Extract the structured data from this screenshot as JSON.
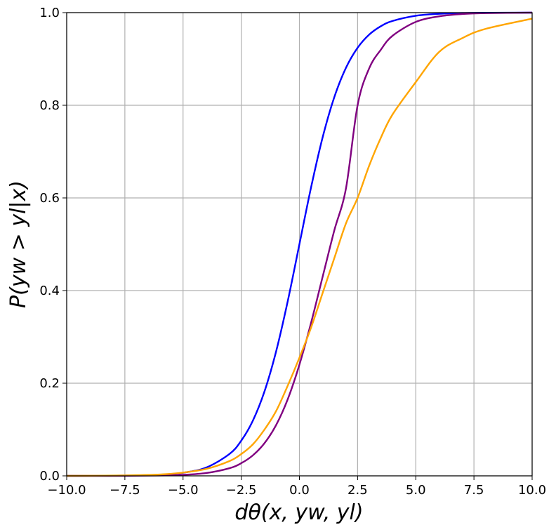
{
  "chart_data": {
    "type": "line",
    "title": "",
    "xlabel": "dθ(x, yw, yl)",
    "ylabel": "P(yw > yl|x)",
    "xlim": [
      -10,
      10
    ],
    "ylim": [
      0,
      1
    ],
    "grid": true,
    "x_ticks": [
      "−10.0",
      "−7.5",
      "−5.0",
      "−2.5",
      "0.0",
      "2.5",
      "5.0",
      "7.5",
      "10.0"
    ],
    "y_ticks": [
      "0.0",
      "0.2",
      "0.4",
      "0.6",
      "0.8",
      "1.0"
    ],
    "x": [
      -10,
      -8,
      -6,
      -5,
      -4,
      -3,
      -2.5,
      -2,
      -1.5,
      -1,
      -0.5,
      0,
      0.5,
      1,
      1.5,
      2,
      2.5,
      3,
      3.5,
      4,
      5,
      6,
      7,
      8,
      10
    ],
    "series": [
      {
        "color": "#0000ff",
        "values": [
          0.0,
          0.0003,
          0.0025,
          0.0067,
          0.018,
          0.0474,
          0.0759,
          0.1192,
          0.1824,
          0.2689,
          0.3775,
          0.5,
          0.6225,
          0.7311,
          0.8176,
          0.8808,
          0.9241,
          0.9526,
          0.9707,
          0.982,
          0.9933,
          0.9975,
          0.9991,
          0.9997,
          1.0
        ]
      },
      {
        "color": "#800080",
        "values": [
          0.0,
          0.0,
          0.0008,
          0.0022,
          0.0061,
          0.0166,
          0.0273,
          0.0443,
          0.0706,
          0.1098,
          0.1657,
          0.24,
          0.3302,
          0.4302,
          0.53,
          0.6204,
          0.8,
          0.88,
          0.92,
          0.95,
          0.98,
          0.992,
          0.997,
          0.999,
          1.0
        ]
      },
      {
        "color": "#ffa500",
        "values": [
          0.0,
          0.0006,
          0.003,
          0.007,
          0.015,
          0.032,
          0.047,
          0.068,
          0.1,
          0.14,
          0.195,
          0.255,
          0.32,
          0.395,
          0.47,
          0.545,
          0.6,
          0.67,
          0.73,
          0.78,
          0.85,
          0.915,
          0.945,
          0.965,
          0.987
        ]
      }
    ]
  }
}
